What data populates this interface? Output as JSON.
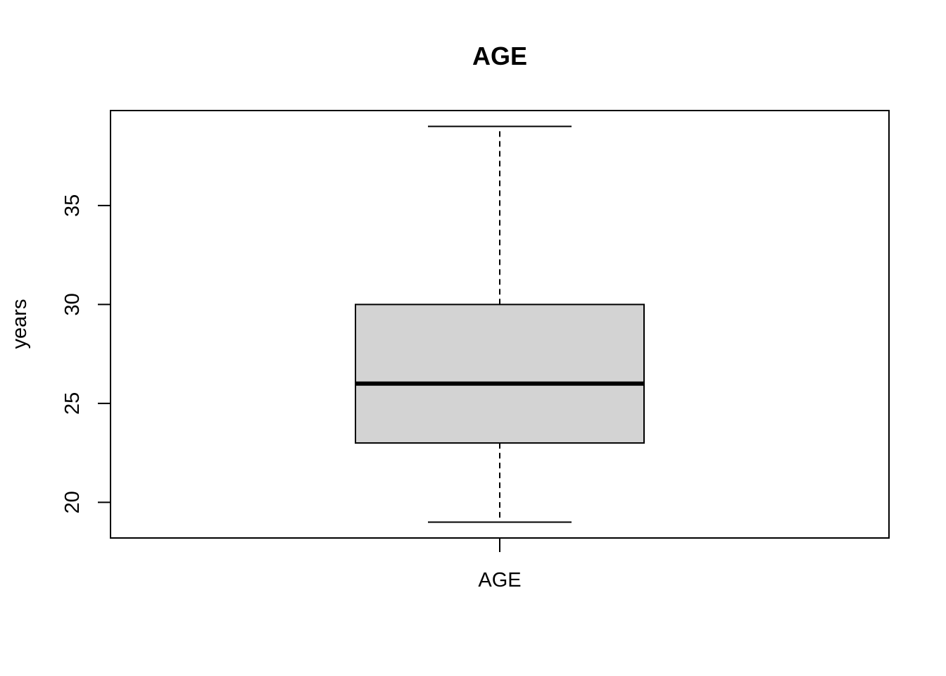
{
  "chart_data": {
    "type": "box",
    "title": "AGE",
    "xlabel": "",
    "ylabel": "years",
    "categories": [
      "AGE"
    ],
    "ylim": [
      18.2,
      39.8
    ],
    "yticks": [
      20,
      25,
      30,
      35
    ],
    "grid": false,
    "legend": "none",
    "series": [
      {
        "min": 19,
        "q1": 23,
        "median": 26,
        "q3": 30,
        "max": 39
      }
    ],
    "colors": {
      "box_fill": "#d3d3d3",
      "stroke": "#000000"
    }
  }
}
